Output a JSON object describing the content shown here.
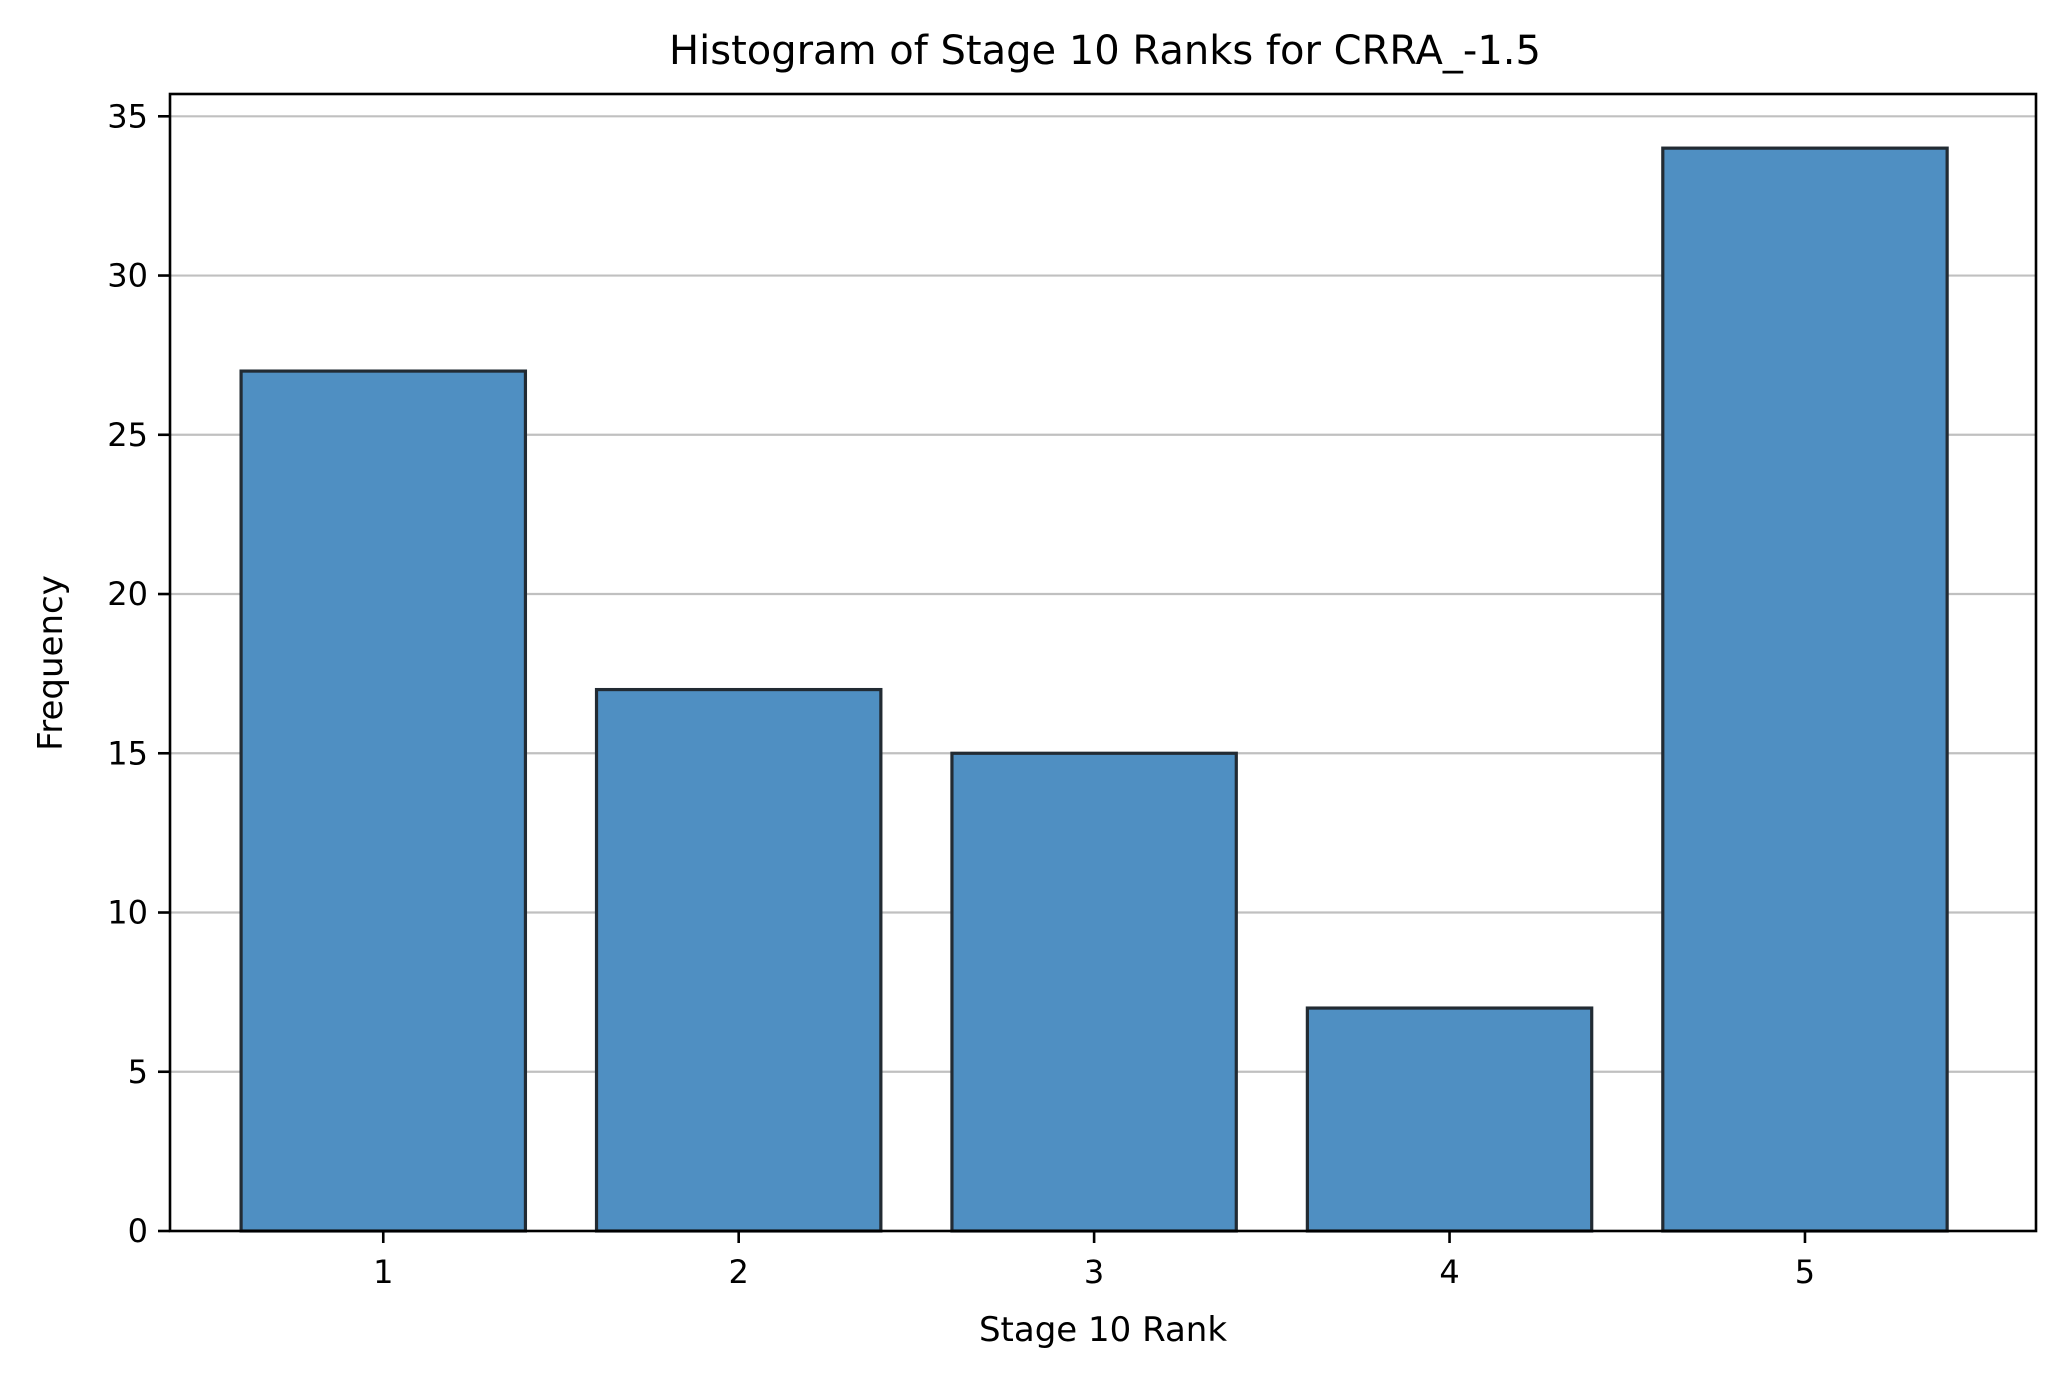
{
  "chart_data": {
    "type": "bar",
    "title": "Histogram of Stage 10 Ranks for CRRA_-1.5",
    "xlabel": "Stage 10 Rank",
    "ylabel": "Frequency",
    "categories": [
      "1",
      "2",
      "3",
      "4",
      "5"
    ],
    "values": [
      27,
      17,
      15,
      7,
      34
    ],
    "xlim": [
      0.4,
      5.65
    ],
    "ylim": [
      0,
      35.7
    ],
    "yticks": [
      0,
      5,
      10,
      15,
      20,
      25,
      30,
      35
    ],
    "grid": "y",
    "legend": "none",
    "bar_color": "#4f8fc2",
    "bar_edge_color": "#222b33"
  }
}
